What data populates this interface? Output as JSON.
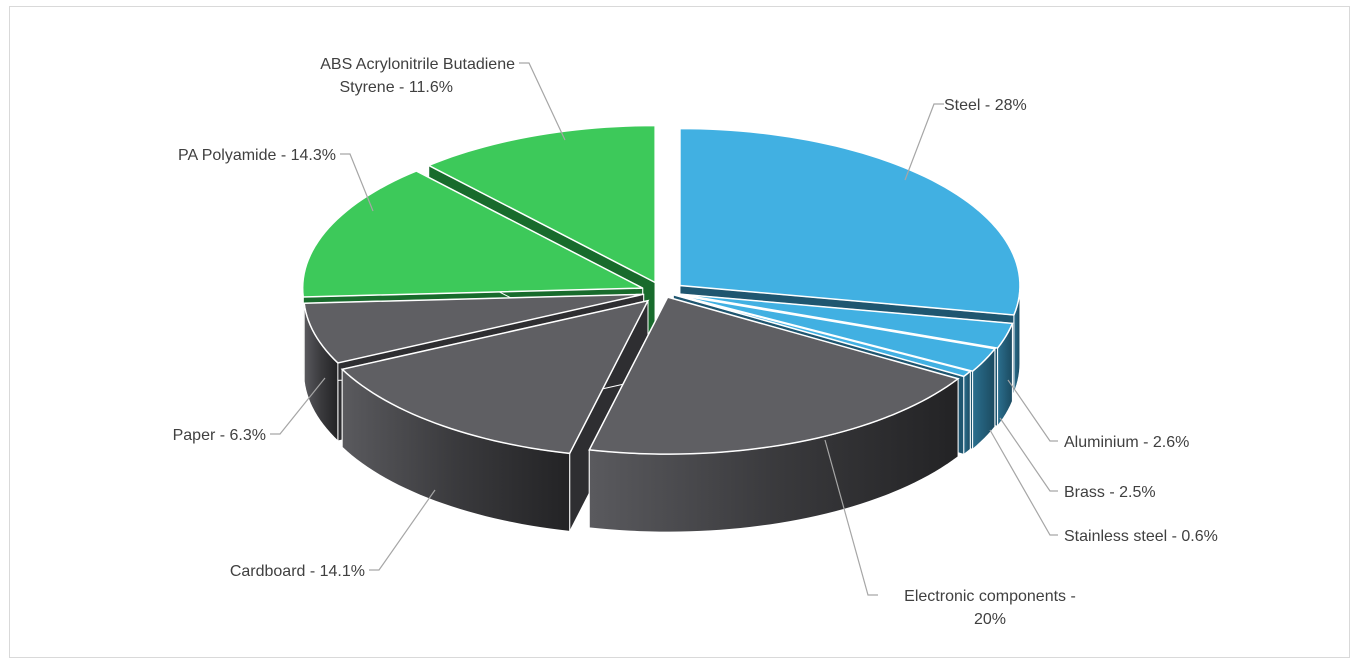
{
  "chart_data": {
    "type": "pie",
    "title": "",
    "style": "3d-exploded",
    "legend": "none",
    "slices": [
      {
        "label": "Steel",
        "value": 28,
        "color": "#41b0e2",
        "display": "Steel - 28%"
      },
      {
        "label": "Aluminium",
        "value": 2.6,
        "color": "#41b0e2",
        "display": "Aluminium - 2.6%"
      },
      {
        "label": "Brass",
        "value": 2.5,
        "color": "#41b0e2",
        "display": "Brass - 2.5%"
      },
      {
        "label": "Stainless steel",
        "value": 0.6,
        "color": "#41b0e2",
        "display": "Stainless steel - 0.6%"
      },
      {
        "label": "Electronic components",
        "value": 20,
        "color": "#5f5f63",
        "display_lines": [
          "Electronic components -",
          "20%"
        ]
      },
      {
        "label": "Cardboard",
        "value": 14.1,
        "color": "#5f5f63",
        "display": "Cardboard - 14.1%"
      },
      {
        "label": "Paper",
        "value": 6.3,
        "color": "#5f5f63",
        "display": "Paper - 6.3%"
      },
      {
        "label": "PA Polyamide",
        "value": 14.3,
        "color": "#3dc95a",
        "display": "PA Polyamide - 14.3%"
      },
      {
        "label": "ABS Acrylonitrile Butadiene Styrene",
        "value": 11.6,
        "color": "#3dc95a",
        "display_lines": [
          "ABS Acrylonitrile Butadiene",
          "Styrene - 11.6%"
        ]
      }
    ]
  }
}
